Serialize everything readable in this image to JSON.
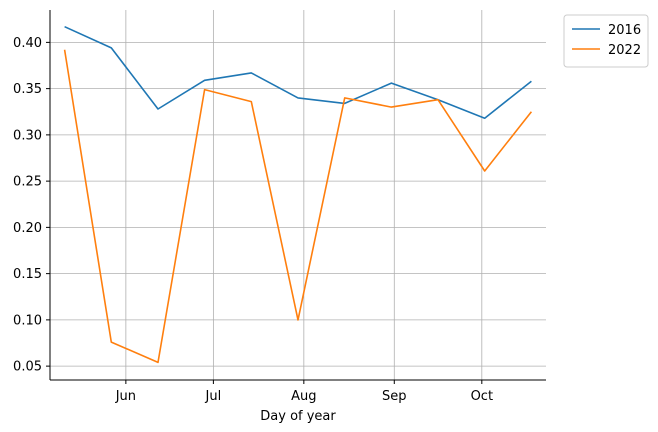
{
  "chart_data": {
    "type": "line",
    "xlabel": "Day of year",
    "ylabel": "",
    "x_ticks": [
      {
        "label": "Jun",
        "day": 152
      },
      {
        "label": "Jul",
        "day": 182
      },
      {
        "label": "Aug",
        "day": 213
      },
      {
        "label": "Sep",
        "day": 244
      },
      {
        "label": "Oct",
        "day": 274
      }
    ],
    "xlim": [
      126,
      296
    ],
    "ylim": [
      0.035,
      0.435
    ],
    "y_ticks": [
      "0.05",
      "0.10",
      "0.15",
      "0.20",
      "0.25",
      "0.30",
      "0.35",
      "0.40"
    ],
    "grid": true,
    "legend_position": "outside-top-right",
    "series": [
      {
        "name": "2016",
        "color": "#1f77b4",
        "x": [
          131,
          147,
          163,
          179,
          195,
          211,
          227,
          243,
          259,
          275,
          291
        ],
        "values": [
          0.417,
          0.394,
          0.328,
          0.359,
          0.367,
          0.34,
          0.334,
          0.356,
          0.338,
          0.318,
          0.358
        ]
      },
      {
        "name": "2022",
        "color": "#ff7f0e",
        "x": [
          131,
          147,
          163,
          179,
          195,
          211,
          227,
          243,
          259,
          275,
          291
        ],
        "values": [
          0.392,
          0.076,
          0.054,
          0.349,
          0.336,
          0.1,
          0.34,
          0.33,
          0.338,
          0.261,
          0.325
        ]
      }
    ]
  }
}
